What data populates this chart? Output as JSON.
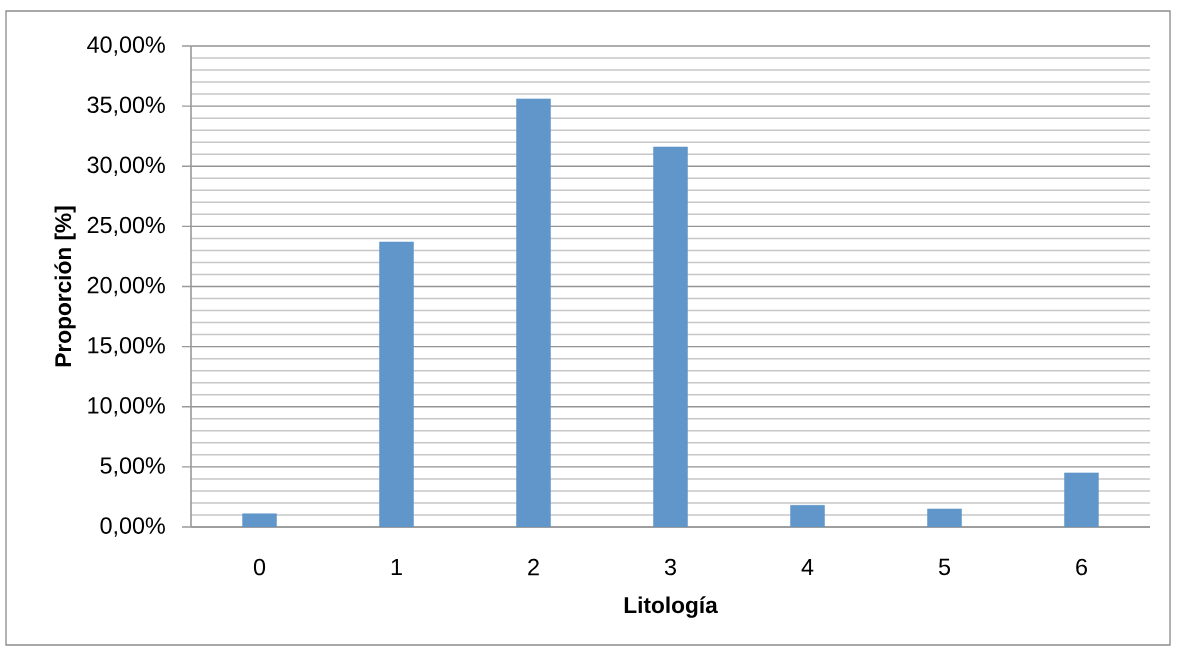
{
  "chart_data": {
    "type": "bar",
    "xlabel": "Litología",
    "ylabel": "Proporción [%]",
    "categories": [
      "0",
      "1",
      "2",
      "3",
      "4",
      "5",
      "6"
    ],
    "values": [
      1.1,
      23.7,
      35.6,
      31.6,
      1.8,
      1.5,
      4.5
    ],
    "color": "#6096c9",
    "ylim": [
      0,
      40
    ],
    "yticks": [
      {
        "value": 0,
        "label": "0,00%"
      },
      {
        "value": 5,
        "label": "5,00%"
      },
      {
        "value": 10,
        "label": "10,00%"
      },
      {
        "value": 15,
        "label": "15,00%"
      },
      {
        "value": 20,
        "label": "20,00%"
      },
      {
        "value": 25,
        "label": "25,00%"
      },
      {
        "value": 30,
        "label": "30,00%"
      },
      {
        "value": 35,
        "label": "35,00%"
      },
      {
        "value": 40,
        "label": "40,00%"
      }
    ],
    "grid": "y"
  }
}
